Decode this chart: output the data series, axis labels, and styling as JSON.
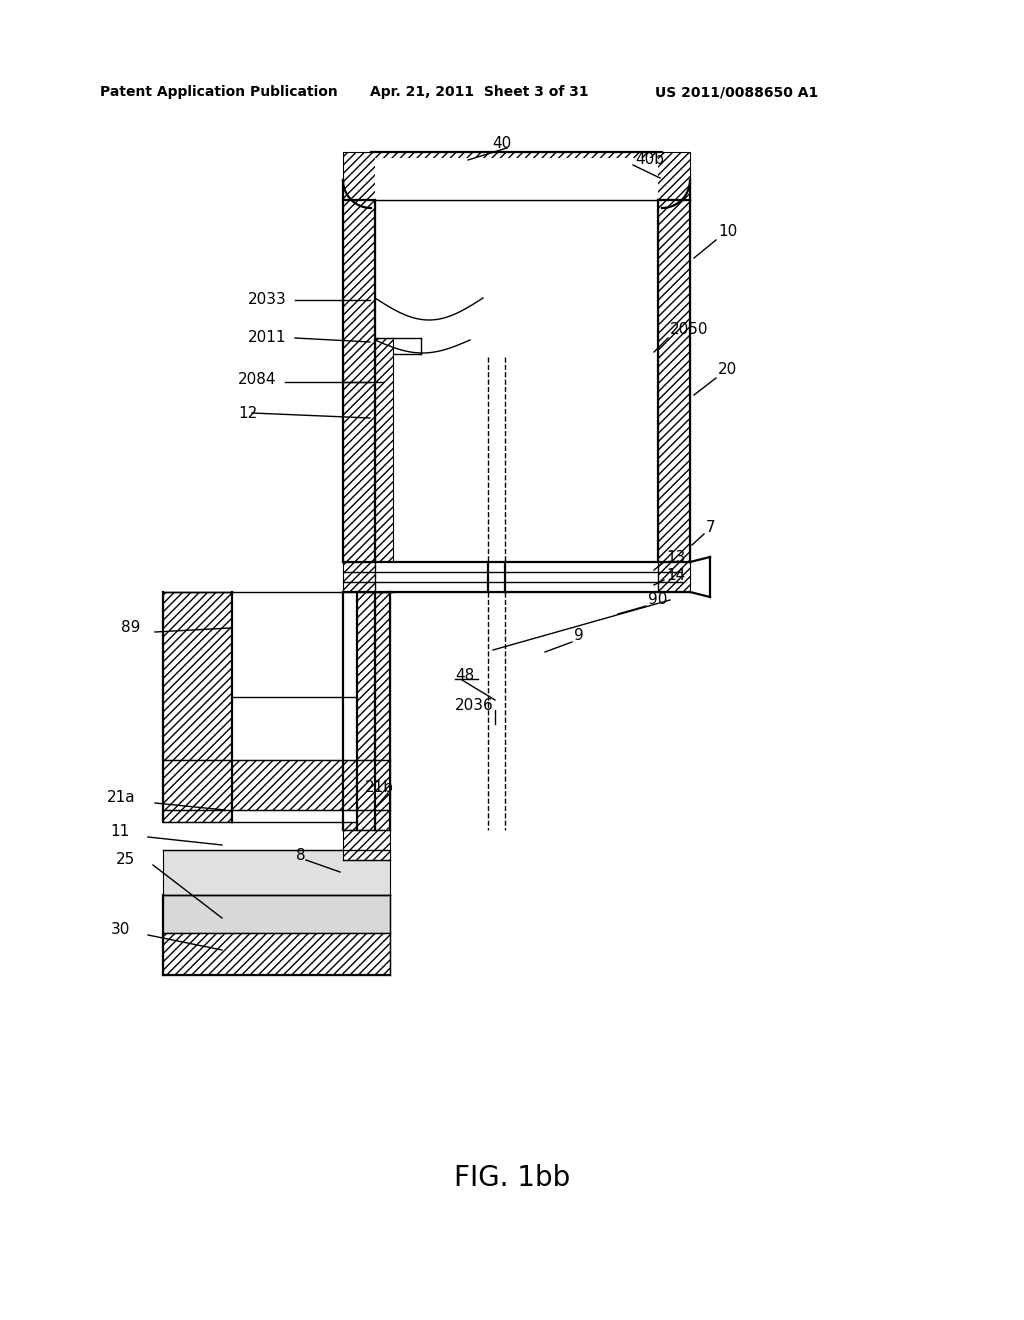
{
  "header_left": "Patent Application Publication",
  "header_center": "Apr. 21, 2011  Sheet 3 of 31",
  "header_right": "US 2011/0088650 A1",
  "figure_caption": "FIG. 1bb",
  "bg": "#ffffff",
  "lc": "#000000"
}
